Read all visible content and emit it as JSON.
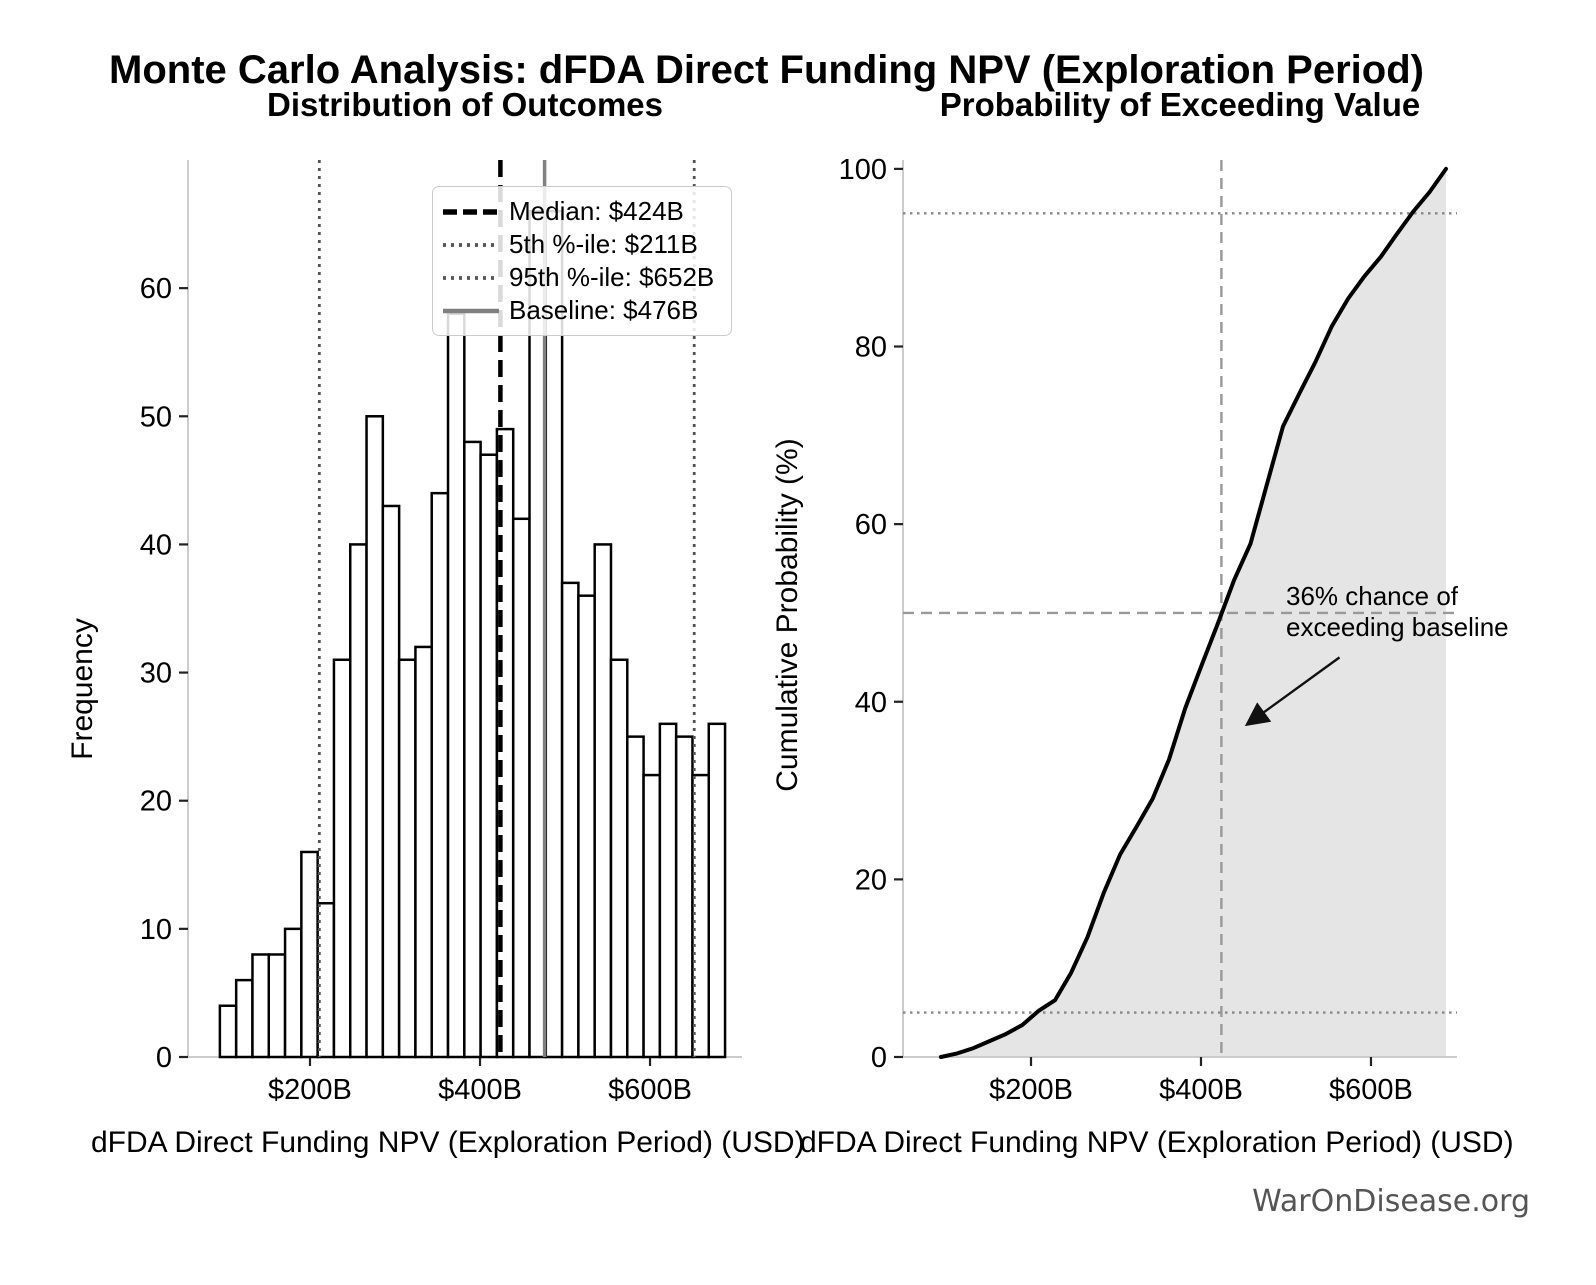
{
  "figure": {
    "suptitle": "Monte Carlo Analysis: dFDA Direct Funding NPV (Exploration Period)",
    "watermark": "WarOnDisease.org"
  },
  "colors": {
    "spine": "#cccccc",
    "tick": "#222222",
    "bar_fill": "#ffffff",
    "bar_edge": "#000000",
    "curve": "#000000",
    "shade": "#e5e5e5",
    "dashed_ref": "#999999",
    "dotted_ref": "#888888",
    "annotation_arrow": "#111111",
    "watermark": "#555555"
  },
  "chart_data": [
    {
      "type": "bar",
      "subtype": "histogram",
      "title": "Distribution of Outcomes",
      "xlabel": "dFDA Direct Funding NPV (Exploration Period) (USD)",
      "ylabel": "Frequency",
      "x_ticks": [
        {
          "value": 200,
          "label": "$200B"
        },
        {
          "value": 400,
          "label": "$400B"
        },
        {
          "value": 600,
          "label": "$600B"
        }
      ],
      "y_ticks": [
        0,
        10,
        20,
        30,
        40,
        50,
        60
      ],
      "xlim": [
        56.5,
        708.2
      ],
      "ylim": [
        0,
        70
      ],
      "grid": false,
      "bin_start": 94.0,
      "bin_width": 19.17,
      "counts": [
        4,
        6,
        8,
        8,
        10,
        16,
        12,
        31,
        40,
        50,
        43,
        31,
        32,
        44,
        58,
        48,
        47,
        49,
        42,
        66,
        66,
        37,
        36,
        40,
        31,
        25,
        22,
        26,
        25,
        22,
        26
      ],
      "n_simulations": 1001,
      "legend_position": "upper right",
      "ref_lines": [
        {
          "name": "median",
          "value": 424,
          "label": "Median: $424B",
          "style": "dashed",
          "color": "#000000",
          "width": 4.5
        },
        {
          "name": "p5",
          "value": 211,
          "label": "5th %-ile: $211B",
          "style": "dotted",
          "color": "#555555",
          "width": 2.8
        },
        {
          "name": "p95",
          "value": 652,
          "label": "95th %-ile: $652B",
          "style": "dotted",
          "color": "#555555",
          "width": 2.8
        },
        {
          "name": "baseline",
          "value": 476,
          "label": "Baseline: $476B",
          "style": "solid",
          "color": "#808080",
          "width": 3.5
        }
      ]
    },
    {
      "type": "line",
      "subtype": "cumulative-distribution",
      "title": "Probability of Exceeding Value",
      "xlabel": "dFDA Direct Funding NPV (Exploration Period) (USD)",
      "ylabel": "Cumulative Probability (%)",
      "x_ticks": [
        {
          "value": 200,
          "label": "$200B"
        },
        {
          "value": 400,
          "label": "$400B"
        },
        {
          "value": 600,
          "label": "$600B"
        }
      ],
      "y_ticks": [
        0,
        20,
        40,
        60,
        80,
        100
      ],
      "xlim": [
        49.4,
        701.2
      ],
      "ylim": [
        0,
        101
      ],
      "grid": false,
      "curve_x": [
        94.0,
        113.2,
        132.3,
        151.5,
        170.7,
        189.8,
        209.0,
        228.2,
        247.3,
        266.5,
        285.7,
        304.8,
        324.0,
        343.2,
        362.3,
        381.5,
        400.7,
        419.8,
        439.0,
        458.2,
        477.3,
        496.5,
        515.7,
        534.8,
        554.0,
        573.2,
        592.3,
        611.5,
        630.7,
        649.8,
        669.0,
        688.2
      ],
      "curve_y": [
        0,
        0.4,
        1.0,
        1.8,
        2.6,
        3.6,
        5.2,
        6.4,
        9.5,
        13.5,
        18.5,
        22.8,
        25.9,
        29.1,
        33.5,
        39.3,
        44.1,
        48.8,
        53.7,
        57.8,
        64.4,
        71.0,
        74.7,
        78.3,
        82.3,
        85.4,
        87.9,
        90.1,
        92.7,
        95.2,
        97.4,
        100
      ],
      "shade_under_curve": true,
      "h_dotted_lines": [
        5,
        95
      ],
      "h_dashed_lines": [
        50
      ],
      "v_dashed_lines": [
        424
      ],
      "annotation": {
        "line1": "36% chance of",
        "line2": "exceeding baseline",
        "text_pos": [
          500,
          52.5
        ],
        "arrow_from": [
          563,
          45
        ],
        "arrow_to": [
          455,
          37.5
        ]
      }
    }
  ]
}
